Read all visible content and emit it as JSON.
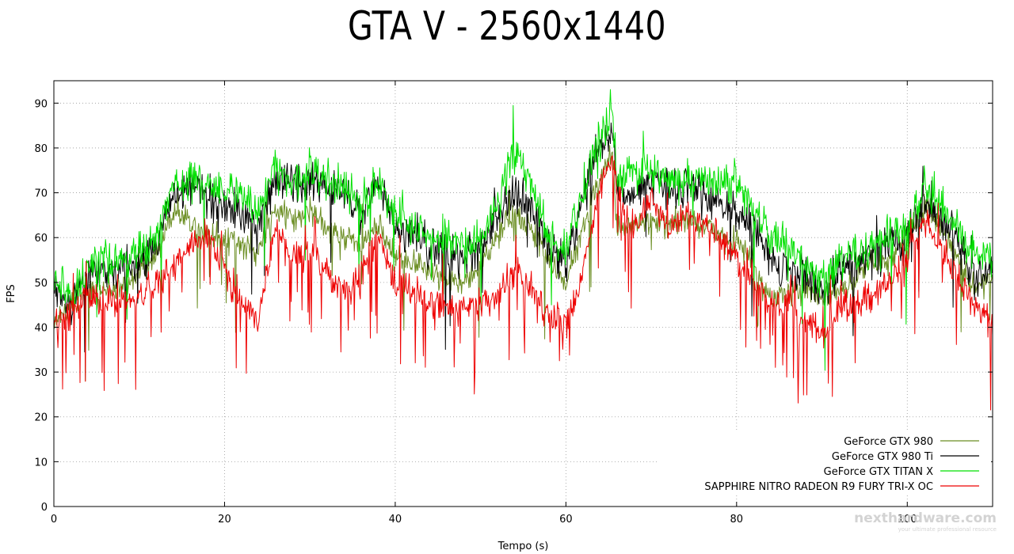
{
  "chart_data": {
    "type": "line",
    "title": "GTA V - 2560x1440",
    "xlabel": "Tempo (s)",
    "ylabel": "FPS",
    "xlim": [
      0,
      110
    ],
    "ylim": [
      0,
      95
    ],
    "xticks": [
      0,
      20,
      40,
      60,
      80,
      100
    ],
    "yticks": [
      0,
      10,
      20,
      30,
      40,
      50,
      60,
      70,
      80,
      90
    ],
    "grid": true,
    "legend_position": "bottom-right",
    "series": [
      {
        "name": "GeForce GTX 980",
        "color": "#6b8e23",
        "x": [
          0,
          2,
          4,
          6,
          8,
          10,
          12,
          14,
          15,
          16,
          18,
          20,
          22,
          24,
          26,
          28,
          30,
          32,
          34,
          36,
          38,
          40,
          42,
          44,
          46,
          48,
          50,
          52,
          54,
          56,
          58,
          60,
          62,
          64,
          65.5,
          66,
          68,
          70,
          72,
          74,
          76,
          78,
          80,
          82,
          84,
          86,
          88,
          90,
          92,
          94,
          96,
          98,
          100,
          102,
          104,
          106,
          108,
          110
        ],
        "values": [
          42,
          45,
          48,
          48,
          49,
          52,
          56,
          66,
          65,
          64,
          61,
          60,
          58,
          57,
          67,
          64,
          66,
          62,
          60,
          58,
          63,
          56,
          54,
          53,
          51,
          50,
          53,
          60,
          65,
          62,
          55,
          50,
          62,
          74,
          79,
          62,
          63,
          64,
          63,
          64,
          63,
          61,
          59,
          55,
          46,
          48,
          48,
          47,
          48,
          52,
          54,
          55,
          60,
          66,
          62,
          55,
          48,
          52
        ],
        "noise": 3,
        "dips": 0.02
      },
      {
        "name": "GeForce GTX 980 Ti",
        "color": "#000000",
        "x": [
          0,
          2,
          4,
          6,
          8,
          10,
          12,
          14,
          15,
          16,
          18,
          20,
          22,
          24,
          26,
          28,
          30,
          32,
          34,
          36,
          38,
          40,
          42,
          44,
          46,
          48,
          50,
          52,
          54,
          56,
          58,
          60,
          62,
          64,
          65.5,
          66,
          68,
          70,
          72,
          74,
          76,
          78,
          80,
          82,
          84,
          86,
          88,
          90,
          92,
          94,
          96,
          98,
          100,
          102,
          104,
          106,
          108,
          110
        ],
        "values": [
          48,
          46,
          51,
          52,
          53,
          54,
          58,
          70,
          70,
          72,
          69,
          66,
          65,
          62,
          74,
          71,
          73,
          71,
          70,
          66,
          72,
          63,
          60,
          58,
          57,
          55,
          58,
          65,
          70,
          67,
          57,
          55,
          69,
          80,
          84,
          70,
          70,
          72,
          71,
          72,
          70,
          68,
          65,
          62,
          55,
          54,
          51,
          48,
          52,
          55,
          56,
          58,
          60,
          68,
          65,
          60,
          50,
          53
        ],
        "noise": 4.5,
        "dips": 0.02
      },
      {
        "name": "GeForce GTX TITAN X",
        "color": "#00e000",
        "x": [
          0,
          2,
          4,
          6,
          8,
          10,
          12,
          14,
          15,
          16,
          18,
          20,
          22,
          24,
          26,
          28,
          30,
          32,
          34,
          36,
          38,
          40,
          42,
          44,
          46,
          48,
          50,
          52,
          54,
          56,
          58,
          60,
          62,
          64,
          65.5,
          66,
          68,
          70,
          72,
          74,
          76,
          78,
          80,
          82,
          84,
          86,
          88,
          90,
          92,
          94,
          96,
          98,
          100,
          102,
          104,
          106,
          108,
          110
        ],
        "values": [
          50,
          47,
          53,
          54,
          55,
          57,
          60,
          72,
          72,
          73,
          72,
          70,
          70,
          66,
          76,
          72,
          75,
          72,
          71,
          67,
          73,
          65,
          62,
          60,
          60,
          58,
          59,
          67,
          79,
          72,
          60,
          57,
          70,
          83,
          88,
          74,
          74,
          75,
          73,
          73,
          72,
          72,
          73,
          66,
          60,
          58,
          54,
          50,
          56,
          57,
          58,
          60,
          62,
          72,
          68,
          62,
          56,
          55
        ],
        "noise": 4.5,
        "dips": 0.015
      },
      {
        "name": "SAPPHIRE NITRO RADEON R9 FURY TRI-X OC",
        "color": "#ee0000",
        "x": [
          0,
          2,
          4,
          6,
          8,
          10,
          12,
          14,
          15,
          16,
          18,
          20,
          22,
          24,
          26,
          28,
          30,
          32,
          34,
          36,
          38,
          40,
          42,
          44,
          46,
          48,
          50,
          52,
          54,
          56,
          58,
          60,
          62,
          64,
          65.5,
          66,
          68,
          70,
          72,
          74,
          76,
          78,
          80,
          82,
          84,
          86,
          88,
          90,
          92,
          94,
          96,
          98,
          100,
          102,
          104,
          106,
          108,
          110
        ],
        "values": [
          40,
          43,
          47,
          45,
          46,
          47,
          50,
          53,
          57,
          58,
          61,
          52,
          45,
          42,
          62,
          55,
          57,
          52,
          48,
          52,
          60,
          50,
          48,
          46,
          45,
          44,
          45,
          47,
          53,
          49,
          42,
          41,
          52,
          72,
          78,
          68,
          62,
          69,
          62,
          64,
          64,
          60,
          55,
          50,
          46,
          45,
          42,
          38,
          44,
          46,
          47,
          51,
          55,
          64,
          58,
          50,
          45,
          40
        ],
        "noise": 3.5,
        "dips": 0.09
      }
    ]
  },
  "watermark": {
    "brand": "nexthardware.com",
    "tagline": "your ultimate professional resource"
  }
}
